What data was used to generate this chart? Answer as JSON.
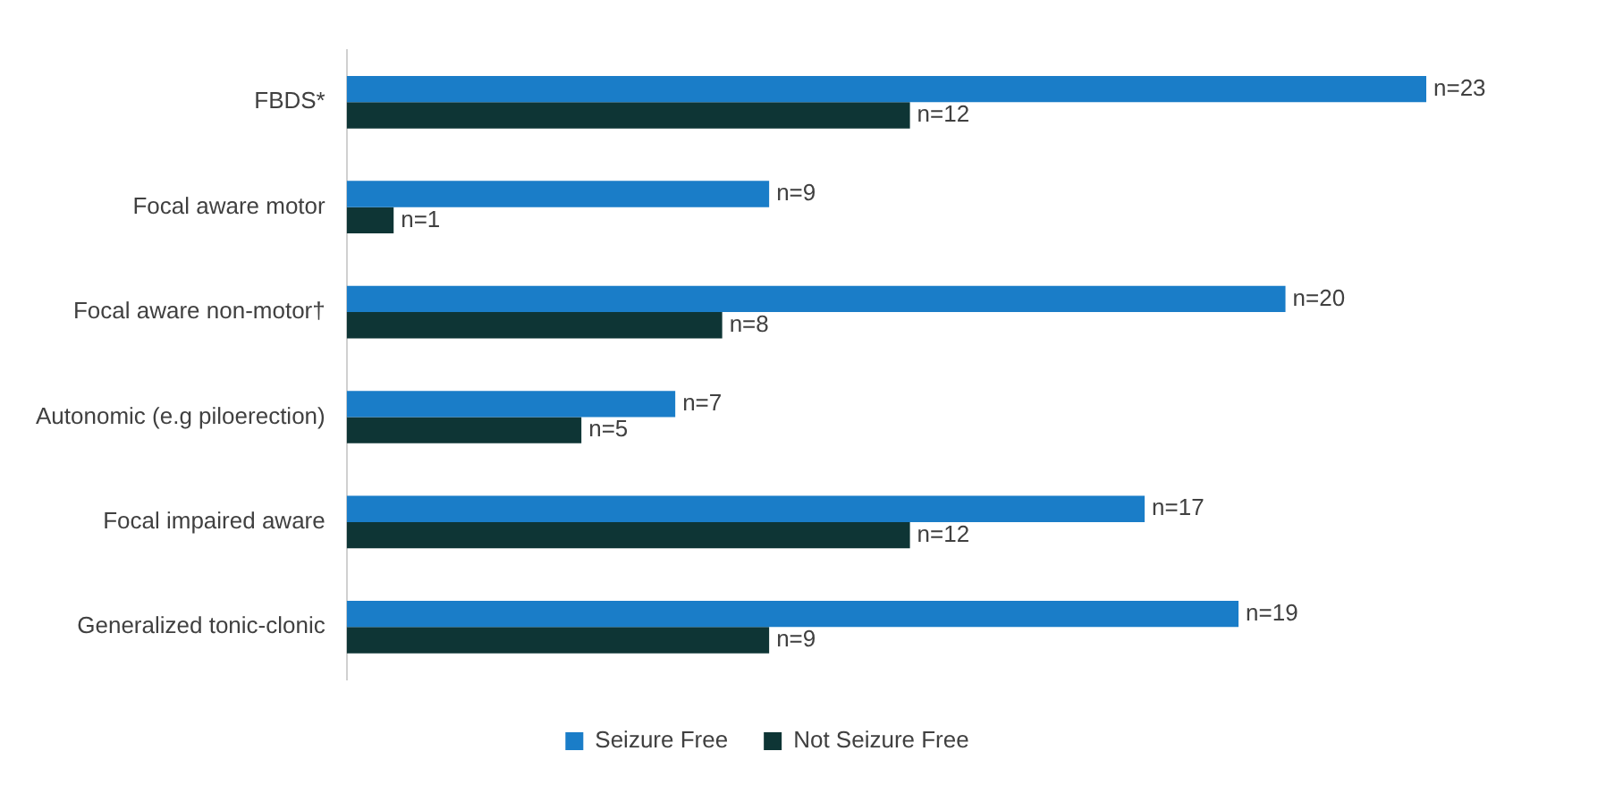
{
  "chart_data": {
    "type": "bar",
    "orientation": "horizontal",
    "categories": [
      "FBDS*",
      "Focal aware motor",
      "Focal aware non-motor†",
      "Autonomic (e.g piloerection)",
      "Focal impaired aware",
      "Generalized tonic-clonic"
    ],
    "series": [
      {
        "name": "Seizure Free",
        "color": "#1a7dc8",
        "values": [
          23,
          9,
          20,
          7,
          17,
          19
        ],
        "value_labels": [
          "n=23",
          "n=9",
          "n=20",
          "n=7",
          "n=17",
          "n=19"
        ]
      },
      {
        "name": "Not Seizure Free",
        "color": "#0e3535",
        "values": [
          12,
          1,
          8,
          5,
          12,
          9
        ],
        "value_labels": [
          "n=12",
          "n=1",
          "n=8",
          "n=5",
          "n=12",
          "n=9"
        ]
      }
    ],
    "relative": false,
    "grid": false,
    "legend": "bottom"
  }
}
